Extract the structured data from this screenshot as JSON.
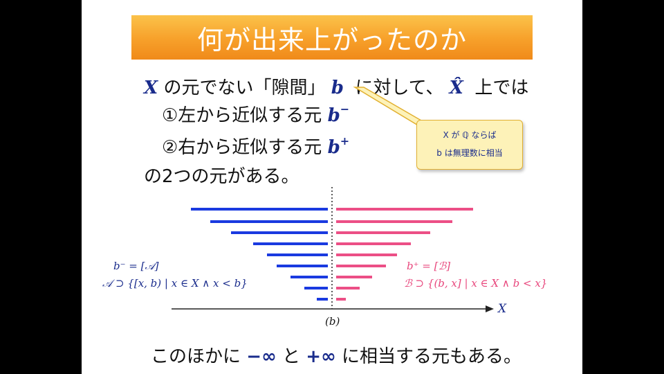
{
  "title": "何が出来上がったのか",
  "line1": {
    "var": "X",
    "text1": "の元でない「隙間」",
    "var2": "b",
    "text2": "に対して、",
    "var3": "X̂",
    "text3": "上では"
  },
  "line2": {
    "text": "①左から近似する元",
    "var": "b",
    "sup": "−"
  },
  "line3": {
    "text": "②右から近似する元",
    "var": "b",
    "sup": "+"
  },
  "line4": {
    "text": "の2つの元がある。"
  },
  "callout": {
    "line1": "X が ℚ ならば",
    "line2": "b は無理数に相当"
  },
  "left_formula": {
    "line1": "b⁻ = [𝒜]",
    "line2": "𝒜 ⊃ {[x, b) | x ∈ X ∧ x < b}"
  },
  "right_formula": {
    "line1": "b⁺ = [ℬ]",
    "line2": "ℬ ⊃ {(b, x] | x ∈ X ∧ b < x}"
  },
  "axis_label": "X",
  "gap_label": "(b)",
  "bottom": {
    "text1": "このほかに",
    "neg_inf": "−∞",
    "text2": "と",
    "pos_inf": "+∞",
    "text3": "に相当する元もある。"
  },
  "colors": {
    "blue_bars": "#1a3ae0",
    "pink_bars": "#ec4f86",
    "title_bg": "#f7a02a",
    "callout_bg": "#fdf2b8"
  }
}
